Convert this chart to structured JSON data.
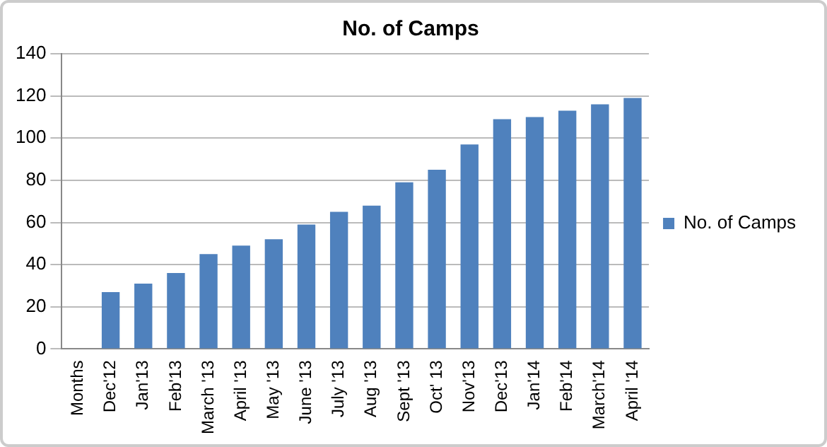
{
  "chart_data": {
    "type": "bar",
    "title": "No. of Camps",
    "categories": [
      "Months",
      "Dec'12",
      "Jan'13",
      "Feb'13",
      "March '13",
      "April '13",
      "May '13",
      "June '13",
      "July '13",
      "Aug '13",
      "Sept '13",
      "Oct' 13",
      "Nov'13",
      "Dec'13",
      "Jan'14",
      "Feb'14",
      "March'14",
      "April '14"
    ],
    "series": [
      {
        "name": "No. of Camps",
        "color": "#4f81bd",
        "values": [
          null,
          27,
          31,
          36,
          45,
          49,
          52,
          59,
          65,
          68,
          79,
          85,
          97,
          109,
          110,
          113,
          116,
          119
        ]
      }
    ],
    "ylim": [
      0,
      140
    ],
    "yticks": [
      0,
      20,
      40,
      60,
      80,
      100,
      120,
      140
    ],
    "grid": "y",
    "legend": "right"
  }
}
